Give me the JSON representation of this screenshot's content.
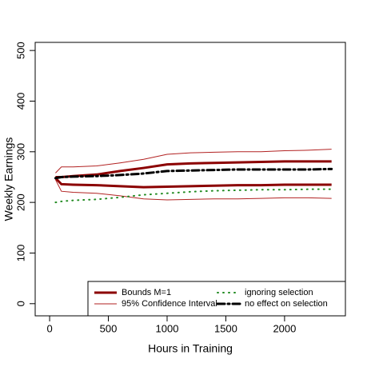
{
  "chart_data": {
    "type": "line",
    "x_label": "Hours in Training",
    "y_label": "Weekly Earnings",
    "x": [
      50,
      100,
      200,
      400,
      600,
      800,
      1000,
      1200,
      1400,
      1600,
      1800,
      2000,
      2200,
      2400
    ],
    "series": [
      {
        "name": "Bounds M=1",
        "color": "#8b0000",
        "width": 3,
        "dash": "none",
        "lower": [
          248,
          236,
          235,
          234,
          232,
          230,
          231,
          232,
          233,
          234,
          234,
          235,
          235,
          235
        ],
        "upper": [
          250,
          250,
          252,
          255,
          262,
          268,
          275,
          277,
          278,
          279,
          280,
          281,
          281,
          281
        ]
      },
      {
        "name": "95% Confidence Interval",
        "color": "#b22222",
        "width": 1,
        "dash": "none",
        "lower": [
          245,
          222,
          220,
          218,
          213,
          207,
          205,
          206,
          207,
          207,
          208,
          209,
          209,
          208
        ],
        "upper": [
          258,
          270,
          270,
          272,
          278,
          285,
          295,
          298,
          299,
          300,
          300,
          302,
          303,
          305
        ]
      },
      {
        "name": "ignoring selection",
        "color": "#228b22",
        "width": 2,
        "dash": "1 6",
        "values": [
          200,
          202,
          204,
          206,
          210,
          215,
          218,
          221,
          223,
          224,
          225,
          225,
          226,
          226
        ]
      },
      {
        "name": "no effect on selection",
        "color": "#000000",
        "width": 3,
        "dash": "9 4 2 4",
        "values": [
          248,
          250,
          251,
          252,
          254,
          257,
          262,
          263,
          264,
          265,
          265,
          265,
          265,
          266
        ]
      }
    ],
    "xlim": [
      -123,
      2518
    ],
    "ylim": [
      -24,
      516
    ],
    "xticks": [
      0,
      500,
      1000,
      1500,
      2000
    ],
    "yticks": [
      0,
      100,
      200,
      300,
      400,
      500
    ],
    "legend": "bottom-right"
  }
}
